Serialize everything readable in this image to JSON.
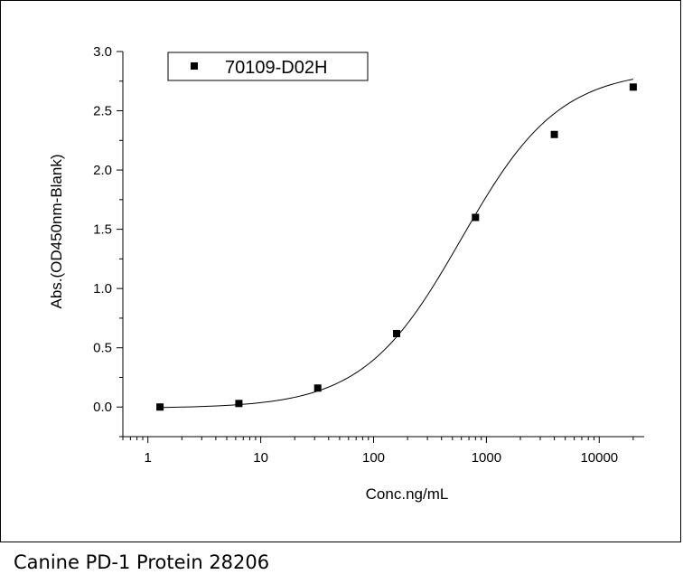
{
  "chart_data": {
    "type": "scatter",
    "xlabel": "Conc.ng/mL",
    "ylabel": "Abs.(OD450nm-Blank)",
    "x_scale": "log",
    "xlim": [
      0.6,
      25000
    ],
    "ylim": [
      -0.25,
      3.0
    ],
    "x_ticks": [
      1,
      10,
      100,
      1000,
      10000
    ],
    "x_tick_labels": [
      "1",
      "10",
      "100",
      "1000",
      "10000"
    ],
    "y_ticks": [
      0.0,
      0.5,
      1.0,
      1.5,
      2.0,
      2.5,
      3.0
    ],
    "y_tick_labels": [
      "0.0",
      "0.5",
      "1.0",
      "1.5",
      "2.0",
      "2.5",
      "3.0"
    ],
    "grid": false,
    "legend_position": "top-left",
    "series": [
      {
        "name": "70109-D02H",
        "marker": "square",
        "color": "#000000",
        "x": [
          1.28,
          6.4,
          32,
          160,
          800,
          4000,
          20000
        ],
        "y": [
          0.0,
          0.03,
          0.16,
          0.62,
          1.6,
          2.3,
          2.7
        ]
      }
    ],
    "fit_curve": {
      "type": "4PL",
      "bottom": -0.01,
      "top": 2.85,
      "ec50": 600,
      "hill": 1.0
    }
  },
  "caption": "Canine PD-1 Protein 28206"
}
